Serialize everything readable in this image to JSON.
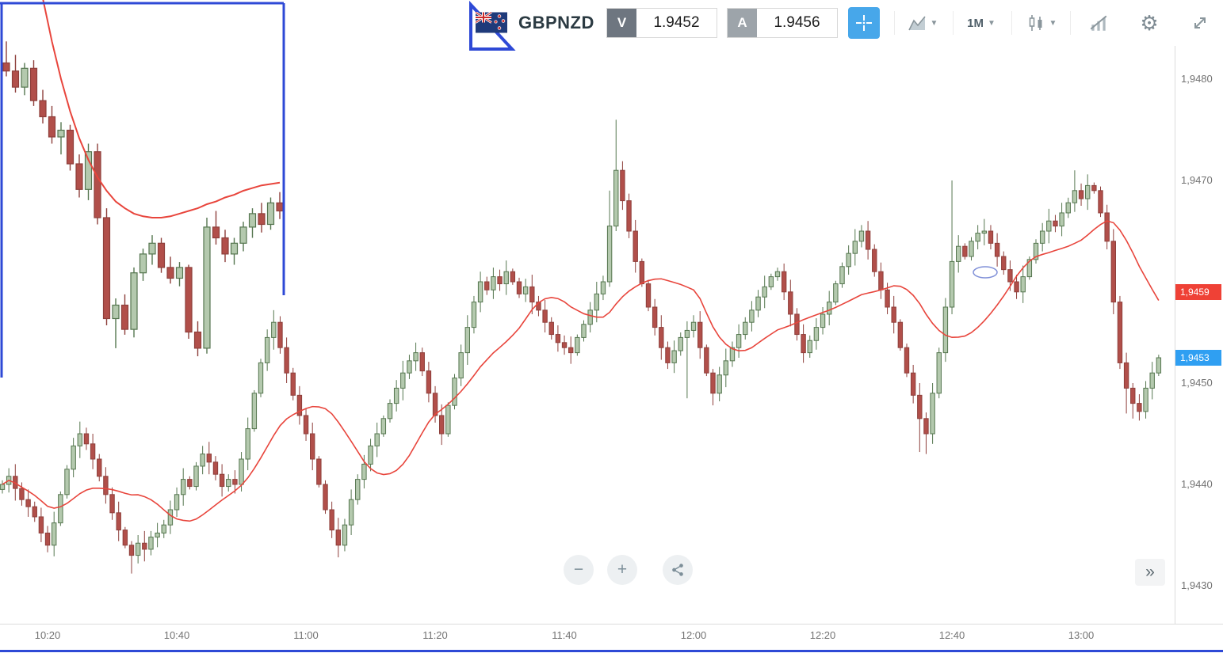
{
  "toolbar": {
    "symbol": "GBPNZD",
    "flag_icon": "nz-flag-icon",
    "sell": {
      "label": "V",
      "value": "1.9452",
      "button_color": "#6e7680"
    },
    "buy": {
      "label": "A",
      "value": "1.9456",
      "button_color": "#9da4aa"
    },
    "crosshair_color": "#47a7ea",
    "timeframe": "1M",
    "tools": [
      "chart-type",
      "timeframe",
      "candle-style",
      "indicators",
      "settings",
      "fullscreen"
    ]
  },
  "axis": {
    "y_ticks": [
      {
        "label": "1,9480",
        "price": 800
      },
      {
        "label": "1,9470",
        "price": 700
      },
      {
        "label": "1,9450",
        "price": 500
      },
      {
        "label": "1,9440",
        "price": 400
      },
      {
        "label": "1,9430",
        "price": 300
      }
    ],
    "x_ticks": [
      "10:20",
      "10:40",
      "11:00",
      "11:20",
      "11:40",
      "12:00",
      "12:20",
      "12:40",
      "13:00"
    ],
    "badges": [
      {
        "label": "1,9459",
        "price": 590,
        "color": "#ef4136",
        "name": "ma-price-badge"
      },
      {
        "label": "1,9453",
        "price": 525,
        "color": "#2f9ff2",
        "name": "last-price-badge"
      }
    ]
  },
  "bottom_controls": {
    "zoom_out_label": "−",
    "zoom_in_label": "+",
    "share_icon": "share-icon",
    "more_label": "»"
  },
  "annotations": {
    "rectangle_color": "#2e49d6",
    "triangle_color": "#2e49d6",
    "ellipse_color": "#8090d8",
    "bottom_line_color": "#2e49d6",
    "shapes": [
      "rectangle-outline",
      "triangle-outline",
      "small-ellipse",
      "bottom-line"
    ]
  },
  "chart_data": {
    "type": "candlestick",
    "symbol": "GBPNZD",
    "timeframe": "1M",
    "start_time": "10:13",
    "interval_minutes": 1,
    "price_encoding": "price = 1.94 + value/100000 (values are OHLC in 0.1-pip points)",
    "ylim": [
      300,
      800
    ],
    "grid": false,
    "ma": {
      "type": "SMA",
      "period": 14,
      "color": "#e8453c"
    },
    "colors": {
      "up_fill": "#b4c9ae",
      "up_border": "#55764f",
      "down_fill": "#b14f4a",
      "down_border": "#8e3f3b"
    },
    "candles": [
      [
        395,
        404,
        391,
        400
      ],
      [
        400,
        416,
        392,
        408
      ],
      [
        408,
        420,
        384,
        396
      ],
      [
        396,
        402,
        379,
        385
      ],
      [
        385,
        395,
        368,
        378
      ],
      [
        378,
        383,
        363,
        368
      ],
      [
        368,
        377,
        343,
        352
      ],
      [
        352,
        359,
        333,
        340
      ],
      [
        340,
        373,
        329,
        362
      ],
      [
        362,
        393,
        359,
        390
      ],
      [
        390,
        419,
        386,
        415
      ],
      [
        415,
        446,
        407,
        438
      ],
      [
        438,
        462,
        426,
        450
      ],
      [
        450,
        456,
        434,
        440
      ],
      [
        440,
        450,
        415,
        425
      ],
      [
        425,
        430,
        403,
        408
      ],
      [
        408,
        417,
        381,
        390
      ],
      [
        390,
        397,
        365,
        372
      ],
      [
        372,
        383,
        344,
        355
      ],
      [
        355,
        358,
        337,
        340
      ],
      [
        340,
        344,
        312,
        330
      ],
      [
        330,
        350,
        322,
        342
      ],
      [
        342,
        354,
        324,
        336
      ],
      [
        336,
        354,
        330,
        348
      ],
      [
        348,
        362,
        338,
        352
      ],
      [
        352,
        365,
        347,
        360
      ],
      [
        360,
        384,
        351,
        375
      ],
      [
        375,
        397,
        368,
        390
      ],
      [
        390,
        416,
        379,
        405
      ],
      [
        405,
        408,
        395,
        398
      ],
      [
        398,
        422,
        394,
        418
      ],
      [
        418,
        438,
        410,
        430
      ],
      [
        430,
        442,
        410,
        422
      ],
      [
        422,
        428,
        404,
        410
      ],
      [
        410,
        420,
        388,
        398
      ],
      [
        398,
        410,
        393,
        405
      ],
      [
        405,
        414,
        391,
        400
      ],
      [
        400,
        432,
        393,
        425
      ],
      [
        425,
        466,
        414,
        455
      ],
      [
        455,
        493,
        452,
        490
      ],
      [
        490,
        524,
        486,
        520
      ],
      [
        520,
        553,
        512,
        545
      ],
      [
        545,
        572,
        533,
        560
      ],
      [
        560,
        566,
        529,
        535
      ],
      [
        535,
        545,
        500,
        510
      ],
      [
        510,
        515,
        483,
        488
      ],
      [
        488,
        497,
        459,
        468
      ],
      [
        468,
        475,
        443,
        450
      ],
      [
        450,
        461,
        414,
        425
      ],
      [
        425,
        428,
        397,
        400
      ],
      [
        400,
        404,
        371,
        375
      ],
      [
        375,
        383,
        347,
        355
      ],
      [
        355,
        367,
        328,
        340
      ],
      [
        340,
        366,
        334,
        360
      ],
      [
        360,
        395,
        350,
        385
      ],
      [
        385,
        410,
        380,
        405
      ],
      [
        405,
        429,
        396,
        420
      ],
      [
        420,
        445,
        413,
        438
      ],
      [
        438,
        461,
        427,
        450
      ],
      [
        450,
        468,
        447,
        465
      ],
      [
        465,
        484,
        461,
        480
      ],
      [
        480,
        503,
        472,
        495
      ],
      [
        495,
        522,
        483,
        510
      ],
      [
        510,
        528,
        504,
        522
      ],
      [
        522,
        540,
        512,
        530
      ],
      [
        530,
        535,
        507,
        512
      ],
      [
        512,
        521,
        481,
        490
      ],
      [
        490,
        497,
        461,
        468
      ],
      [
        468,
        479,
        439,
        450
      ],
      [
        450,
        481,
        447,
        478
      ],
      [
        478,
        509,
        474,
        505
      ],
      [
        505,
        538,
        497,
        530
      ],
      [
        530,
        567,
        518,
        555
      ],
      [
        555,
        586,
        549,
        580
      ],
      [
        580,
        610,
        570,
        600
      ],
      [
        600,
        605,
        587,
        592
      ],
      [
        592,
        614,
        583,
        605
      ],
      [
        605,
        612,
        591,
        598
      ],
      [
        598,
        621,
        587,
        610
      ],
      [
        610,
        613,
        597,
        600
      ],
      [
        600,
        604,
        584,
        588
      ],
      [
        588,
        603,
        580,
        595
      ],
      [
        595,
        607,
        568,
        580
      ],
      [
        580,
        586,
        566,
        572
      ],
      [
        572,
        582,
        550,
        560
      ],
      [
        560,
        565,
        543,
        548
      ],
      [
        548,
        557,
        531,
        540
      ],
      [
        540,
        547,
        528,
        535
      ],
      [
        535,
        546,
        519,
        530
      ],
      [
        530,
        548,
        527,
        545
      ],
      [
        545,
        562,
        541,
        558
      ],
      [
        558,
        580,
        550,
        572
      ],
      [
        572,
        600,
        560,
        588
      ],
      [
        588,
        606,
        582,
        600
      ],
      [
        600,
        690,
        595,
        655
      ],
      [
        655,
        760,
        650,
        710
      ],
      [
        710,
        719,
        671,
        680
      ],
      [
        680,
        687,
        643,
        650
      ],
      [
        650,
        661,
        609,
        620
      ],
      [
        620,
        623,
        595,
        598
      ],
      [
        598,
        602,
        571,
        575
      ],
      [
        575,
        583,
        547,
        555
      ],
      [
        555,
        567,
        523,
        535
      ],
      [
        535,
        541,
        514,
        520
      ],
      [
        520,
        542,
        510,
        532
      ],
      [
        532,
        550,
        527,
        545
      ],
      [
        545,
        561,
        485,
        552
      ],
      [
        552,
        567,
        545,
        560
      ],
      [
        560,
        571,
        524,
        535
      ],
      [
        535,
        538,
        507,
        510
      ],
      [
        510,
        514,
        478,
        490
      ],
      [
        490,
        516,
        482,
        508
      ],
      [
        508,
        534,
        496,
        522
      ],
      [
        522,
        541,
        516,
        535
      ],
      [
        535,
        558,
        525,
        548
      ],
      [
        548,
        565,
        543,
        560
      ],
      [
        560,
        581,
        551,
        572
      ],
      [
        572,
        592,
        565,
        585
      ],
      [
        585,
        606,
        574,
        595
      ],
      [
        595,
        608,
        592,
        605
      ],
      [
        605,
        614,
        601,
        610
      ],
      [
        610,
        618,
        582,
        590
      ],
      [
        590,
        602,
        556,
        568
      ],
      [
        568,
        574,
        542,
        548
      ],
      [
        548,
        558,
        520,
        530
      ],
      [
        530,
        547,
        525,
        542
      ],
      [
        542,
        564,
        533,
        555
      ],
      [
        555,
        575,
        548,
        568
      ],
      [
        568,
        591,
        557,
        580
      ],
      [
        580,
        601,
        577,
        598
      ],
      [
        598,
        619,
        594,
        615
      ],
      [
        615,
        636,
        607,
        628
      ],
      [
        628,
        652,
        616,
        640
      ],
      [
        640,
        656,
        634,
        650
      ],
      [
        650,
        660,
        622,
        632
      ],
      [
        632,
        637,
        605,
        610
      ],
      [
        610,
        619,
        583,
        592
      ],
      [
        592,
        599,
        568,
        575
      ],
      [
        575,
        586,
        549,
        560
      ],
      [
        560,
        563,
        532,
        535
      ],
      [
        535,
        539,
        506,
        510
      ],
      [
        510,
        518,
        480,
        488
      ],
      [
        488,
        500,
        432,
        465
      ],
      [
        465,
        471,
        430,
        450
      ],
      [
        450,
        500,
        440,
        490
      ],
      [
        490,
        535,
        485,
        530
      ],
      [
        530,
        584,
        521,
        575
      ],
      [
        575,
        700,
        568,
        620
      ],
      [
        620,
        646,
        609,
        635
      ],
      [
        635,
        638,
        622,
        625
      ],
      [
        625,
        644,
        621,
        640
      ],
      [
        640,
        656,
        632,
        648
      ],
      [
        648,
        662,
        636,
        650
      ],
      [
        650,
        656,
        632,
        638
      ],
      [
        638,
        648,
        615,
        625
      ],
      [
        625,
        630,
        607,
        612
      ],
      [
        612,
        621,
        591,
        600
      ],
      [
        600,
        607,
        583,
        590
      ],
      [
        590,
        616,
        579,
        605
      ],
      [
        605,
        625,
        602,
        622
      ],
      [
        622,
        642,
        618,
        638
      ],
      [
        638,
        658,
        630,
        650
      ],
      [
        650,
        672,
        638,
        660
      ],
      [
        660,
        666,
        649,
        655
      ],
      [
        655,
        678,
        645,
        668
      ],
      [
        668,
        683,
        663,
        678
      ],
      [
        678,
        710,
        669,
        690
      ],
      [
        690,
        697,
        675,
        682
      ],
      [
        682,
        706,
        671,
        695
      ],
      [
        695,
        698,
        687,
        690
      ],
      [
        690,
        694,
        664,
        668
      ],
      [
        668,
        676,
        632,
        640
      ],
      [
        640,
        652,
        568,
        580
      ],
      [
        580,
        586,
        514,
        520
      ],
      [
        520,
        530,
        470,
        495
      ],
      [
        495,
        500,
        465,
        480
      ],
      [
        480,
        489,
        463,
        472
      ],
      [
        472,
        502,
        465,
        495
      ],
      [
        495,
        521,
        484,
        510
      ],
      [
        510,
        528,
        507,
        525
      ]
    ],
    "inset": {
      "description": "magnified chart region shown at top-left inside blue rectangle",
      "candles": [
        [
          700,
          716,
          690,
          694
        ],
        [
          694,
          706,
          678,
          682
        ],
        [
          682,
          700,
          676,
          696
        ],
        [
          696,
          702,
          668,
          672
        ],
        [
          672,
          680,
          655,
          660
        ],
        [
          660,
          668,
          640,
          645
        ],
        [
          645,
          656,
          632,
          650
        ],
        [
          650,
          654,
          620,
          625
        ],
        [
          625,
          632,
          600,
          606
        ],
        [
          606,
          640,
          598,
          634
        ],
        [
          634,
          640,
          580,
          585
        ],
        [
          585,
          592,
          505,
          510
        ],
        [
          510,
          525,
          488,
          520
        ],
        [
          520,
          528,
          498,
          502
        ],
        [
          502,
          548,
          496,
          544
        ],
        [
          544,
          562,
          538,
          558
        ],
        [
          558,
          572,
          550,
          566
        ],
        [
          566,
          570,
          544,
          548
        ],
        [
          548,
          556,
          536,
          540
        ],
        [
          540,
          552,
          534,
          548
        ],
        [
          548,
          550,
          495,
          500
        ],
        [
          500,
          508,
          482,
          488
        ],
        [
          488,
          585,
          484,
          578
        ],
        [
          578,
          590,
          565,
          570
        ],
        [
          570,
          576,
          552,
          558
        ],
        [
          558,
          570,
          550,
          566
        ],
        [
          566,
          582,
          560,
          578
        ],
        [
          578,
          592,
          570,
          588
        ],
        [
          588,
          596,
          574,
          580
        ],
        [
          580,
          600,
          576,
          596
        ],
        [
          596,
          604,
          584,
          590
        ]
      ],
      "ma": [
        900,
        860,
        820,
        782,
        748,
        716,
        688,
        664,
        644,
        628,
        615,
        605,
        597,
        592,
        588,
        586,
        585,
        585,
        586,
        588,
        590,
        592,
        595,
        597,
        600,
        602,
        605,
        607,
        609,
        610,
        611
      ]
    }
  }
}
